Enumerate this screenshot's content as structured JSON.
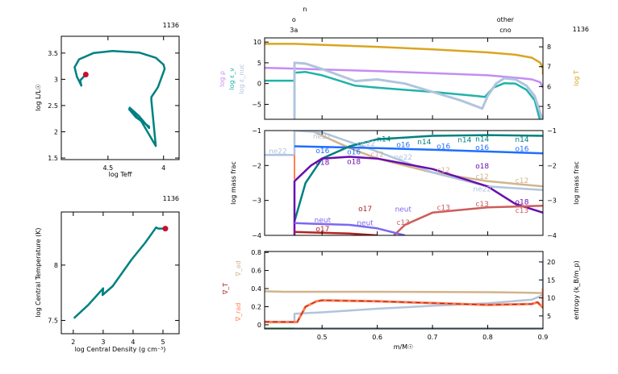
{
  "model_number": "1136",
  "top_annotations": [
    {
      "text": "n",
      "x": 0.469,
      "row": 0
    },
    {
      "text": "o",
      "x": 0.449,
      "row": 1
    },
    {
      "text": "3a",
      "x": 0.449,
      "row": 2
    },
    {
      "text": "other",
      "x": 0.832,
      "row": 1
    },
    {
      "text": "cno",
      "x": 0.832,
      "row": 2
    }
  ],
  "chart_data": [
    {
      "id": "hr",
      "type": "line",
      "title": "1136",
      "xlabel": "log Teff",
      "ylabel": "log L/L☉",
      "xlim": [
        4.92,
        3.86
      ],
      "ylim": [
        1.47,
        3.82
      ],
      "xticks": [
        4.5,
        4
      ],
      "yticks": [
        1.5,
        2,
        2.5,
        3,
        3.5
      ],
      "series": [
        {
          "color": "#008080",
          "width": 2.5,
          "points": [
            [
              4.31,
              2.47
            ],
            [
              4.22,
              2.3
            ],
            [
              4.13,
              2.07
            ],
            [
              4.13,
              2.1
            ],
            [
              4.25,
              2.28
            ],
            [
              4.31,
              2.43
            ],
            [
              4.2,
              2.2
            ],
            [
              4.07,
              1.73
            ],
            [
              4.11,
              2.6
            ],
            [
              4.11,
              2.66
            ],
            [
              4.05,
              2.85
            ],
            [
              3.99,
              3.2
            ],
            [
              4.0,
              3.28
            ],
            [
              4.07,
              3.41
            ],
            [
              4.22,
              3.51
            ],
            [
              4.46,
              3.54
            ],
            [
              4.63,
              3.5
            ],
            [
              4.76,
              3.38
            ],
            [
              4.8,
              3.23
            ],
            [
              4.78,
              3.05
            ],
            [
              4.74,
              2.88
            ],
            [
              4.75,
              2.98
            ],
            [
              4.7,
              3.09
            ]
          ]
        }
      ],
      "marker": {
        "x": 4.7,
        "y": 3.09,
        "color": "#c8102e"
      }
    },
    {
      "id": "rhoT",
      "type": "line",
      "title": "1136",
      "xlabel": "log Central Density (g cm⁻³)",
      "ylabel": "log Central Temperature (K)",
      "xlim": [
        1.6,
        5.54
      ],
      "ylim": [
        7.38,
        8.48
      ],
      "xticks": [
        2,
        3,
        4,
        5
      ],
      "yticks": [
        7.5,
        8
      ],
      "series": [
        {
          "color": "#008080",
          "width": 2.5,
          "points": [
            [
              2.02,
              7.52
            ],
            [
              2.5,
              7.64
            ],
            [
              3.0,
              7.79
            ],
            [
              2.98,
              7.73
            ],
            [
              3.32,
              7.81
            ],
            [
              3.95,
              8.05
            ],
            [
              4.4,
              8.2
            ],
            [
              4.77,
              8.34
            ],
            [
              4.85,
              8.33
            ],
            [
              5.08,
              8.33
            ]
          ]
        }
      ],
      "marker": {
        "x": 5.08,
        "y": 8.33,
        "color": "#c8102e"
      }
    },
    {
      "id": "profile-top",
      "type": "line",
      "title": "1136",
      "xlabel": "",
      "ylabels": [
        {
          "text": "log ρ",
          "color": "#c58cf5"
        },
        {
          "text": "log ε_ν",
          "color": "#20b2aa"
        },
        {
          "text": "log ε_nuc",
          "color": "#b0c4de"
        }
      ],
      "yrlabel": {
        "text": "log T",
        "color": "#daa520"
      },
      "xlim": [
        0.396,
        0.9
      ],
      "ylim": [
        -8.6,
        11
      ],
      "yrlim": [
        4.35,
        8.45
      ],
      "xticks": [
        0.5,
        0.6,
        0.7,
        0.8,
        0.9
      ],
      "yticks": [
        -5,
        0,
        5,
        10
      ],
      "yrticks": [
        5,
        6,
        7,
        8
      ],
      "series": [
        {
          "name": "log T",
          "axis": "right",
          "color": "#daa520",
          "width": 2.5,
          "points": [
            [
              0.396,
              8.15
            ],
            [
              0.45,
              8.15
            ],
            [
              0.5,
              8.1
            ],
            [
              0.6,
              8.0
            ],
            [
              0.7,
              7.87
            ],
            [
              0.8,
              7.72
            ],
            [
              0.85,
              7.6
            ],
            [
              0.88,
              7.45
            ],
            [
              0.895,
              7.2
            ],
            [
              0.9,
              6.9
            ],
            [
              0.9,
              6.6
            ]
          ]
        },
        {
          "name": "log ρ",
          "color": "#c58cf5",
          "width": 2.5,
          "points": [
            [
              0.396,
              3.8
            ],
            [
              0.45,
              3.6
            ],
            [
              0.6,
              3.0
            ],
            [
              0.7,
              2.5
            ],
            [
              0.8,
              2.0
            ],
            [
              0.86,
              1.3
            ],
            [
              0.88,
              1.0
            ],
            [
              0.895,
              0.3
            ],
            [
              0.9,
              -1
            ]
          ]
        },
        {
          "name": "log ε_ν",
          "color": "#20b2aa",
          "width": 2.5,
          "points": [
            [
              0.396,
              0.7
            ],
            [
              0.45,
              0.7
            ],
            [
              0.45,
              2.6
            ],
            [
              0.47,
              2.8
            ],
            [
              0.5,
              2.0
            ],
            [
              0.56,
              -0.5
            ],
            [
              0.6,
              -1
            ],
            [
              0.7,
              -2
            ],
            [
              0.78,
              -3
            ],
            [
              0.795,
              -3.2
            ],
            [
              0.81,
              -1
            ],
            [
              0.83,
              0.1
            ],
            [
              0.85,
              0
            ],
            [
              0.87,
              -1.5
            ],
            [
              0.885,
              -4
            ],
            [
              0.895,
              -9
            ]
          ]
        },
        {
          "name": "log ε_nuc",
          "color": "#b0c4de",
          "width": 3,
          "points": [
            [
              0.45,
              -9
            ],
            [
              0.45,
              5
            ],
            [
              0.47,
              4.8
            ],
            [
              0.5,
              3.5
            ],
            [
              0.56,
              0.6
            ],
            [
              0.6,
              1.0
            ],
            [
              0.65,
              0
            ],
            [
              0.7,
              -2
            ],
            [
              0.75,
              -4
            ],
            [
              0.79,
              -6
            ],
            [
              0.8,
              -3
            ],
            [
              0.815,
              0
            ],
            [
              0.83,
              1.3
            ],
            [
              0.85,
              1
            ],
            [
              0.87,
              -0.5
            ],
            [
              0.885,
              -3
            ],
            [
              0.9,
              -9
            ]
          ]
        }
      ]
    },
    {
      "id": "profile-mid",
      "type": "line",
      "ylabel": "log mass frac",
      "yrlabel": "log mass frac",
      "xlim": [
        0.396,
        0.9
      ],
      "ylim": [
        -4,
        -1
      ],
      "yrlim": [
        -4,
        -1
      ],
      "xticks": [
        0.5,
        0.6,
        0.7,
        0.8,
        0.9
      ],
      "yticks": [
        -4,
        -3,
        -2,
        -1
      ],
      "yrticks": [
        -4,
        -3,
        -2,
        -1
      ],
      "series": [
        {
          "name": "c12",
          "color": "#d2b48c",
          "width": 2.5,
          "points": [
            [
              0.48,
              -1
            ],
            [
              0.55,
              -1.5
            ],
            [
              0.6,
              -1.8
            ],
            [
              0.7,
              -2.2
            ],
            [
              0.8,
              -2.45
            ],
            [
              0.9,
              -2.6
            ]
          ],
          "labels_at": [
            0.6,
            0.72,
            0.79,
            0.862
          ]
        },
        {
          "name": "ne22",
          "color": "#b0c4de",
          "width": 2.5,
          "points": [
            [
              0.396,
              -1.7
            ],
            [
              0.45,
              -1.7
            ],
            [
              0.45,
              -1
            ],
            [
              0.5,
              -1.05
            ],
            [
              0.6,
              -1.6
            ],
            [
              0.7,
              -2.2
            ],
            [
              0.8,
              -2.6
            ],
            [
              0.9,
              -2.7
            ]
          ],
          "labels_at": [
            0.42,
            0.5,
            0.58,
            0.647,
            0.79
          ]
        },
        {
          "name": "o16",
          "color": "#1e6eff",
          "width": 2.5,
          "points": [
            [
              0.45,
              -1.45
            ],
            [
              0.6,
              -1.5
            ],
            [
              0.7,
              -1.55
            ],
            [
              0.8,
              -1.6
            ],
            [
              0.9,
              -1.65
            ]
          ],
          "labels_at": [
            0.501,
            0.578,
            0.647,
            0.72,
            0.79,
            0.862
          ]
        },
        {
          "name": "n14",
          "color": "#008080",
          "width": 2.5,
          "points": [
            [
              0.45,
              -3.6
            ],
            [
              0.47,
              -2.5
            ],
            [
              0.5,
              -1.8
            ],
            [
              0.55,
              -1.45
            ],
            [
              0.6,
              -1.25
            ],
            [
              0.7,
              -1.15
            ],
            [
              0.8,
              -1.13
            ],
            [
              0.9,
              -1.15
            ]
          ],
          "labels_at": [
            0.574,
            0.647,
            0.72,
            0.79,
            0.862
          ]
        },
        {
          "name": "o18",
          "color": "#6a0dad",
          "width": 2.5,
          "points": [
            [
              0.45,
              -4
            ],
            [
              0.45,
              -2.45
            ],
            [
              0.48,
              -2.0
            ],
            [
              0.5,
              -1.8
            ],
            [
              0.55,
              -1.75
            ],
            [
              0.6,
              -1.8
            ],
            [
              0.7,
              -2.1
            ],
            [
              0.8,
              -2.6
            ],
            [
              0.85,
              -3.1
            ],
            [
              0.9,
              -3.35
            ]
          ],
          "labels_at": [
            0.501,
            0.578,
            0.79,
            0.862
          ]
        },
        {
          "name": "c13",
          "color": "#cd5c5c",
          "width": 2.5,
          "points": [
            [
              0.63,
              -4
            ],
            [
              0.65,
              -3.7
            ],
            [
              0.7,
              -3.35
            ],
            [
              0.8,
              -3.2
            ],
            [
              0.9,
              -3.15
            ]
          ],
          "labels_at": [
            0.647,
            0.72,
            0.79,
            0.862
          ]
        },
        {
          "name": "neut",
          "color": "#7b68ee",
          "width": 2.5,
          "points": [
            [
              0.45,
              -3.65
            ],
            [
              0.55,
              -3.7
            ],
            [
              0.6,
              -3.8
            ],
            [
              0.65,
              -4.0
            ]
          ],
          "labels_at": [
            0.501,
            0.578,
            0.647
          ]
        },
        {
          "name": "o17",
          "color": "#b22222",
          "width": 2.5,
          "points": [
            [
              0.45,
              -3.9
            ],
            [
              0.55,
              -3.95
            ],
            [
              0.6,
              -4.0
            ]
          ],
          "labels_at": [
            0.501,
            0.578
          ]
        },
        {
          "color": "#ff7f50",
          "width": 2,
          "points": [
            [
              0.45,
              -1.7
            ],
            [
              0.45,
              -2.4
            ]
          ]
        }
      ]
    },
    {
      "id": "profile-bottom",
      "type": "line",
      "xlabel": "m/M☉",
      "ylabels": [
        {
          "text": "∇_ad",
          "color": "#d2b48c"
        },
        {
          "text": "∇_T",
          "color": "#b22222"
        },
        {
          "text": "∇_rad",
          "color": "#ff7f50"
        }
      ],
      "yrlabel": {
        "text": "entropy (k_B/m_p)",
        "color": "#000000"
      },
      "xlim": [
        0.396,
        0.9
      ],
      "ylim": [
        -0.045,
        0.81
      ],
      "yrlim": [
        1.4,
        22.9
      ],
      "xticks": [
        0.5,
        0.6,
        0.7,
        0.8,
        0.9
      ],
      "xticklabels": [
        "0.5",
        "0.6",
        "0.7",
        "0.8",
        "0.9"
      ],
      "yticks": [
        0,
        0.2,
        0.4,
        0.6,
        0.8
      ],
      "yrticks": [
        5,
        10,
        15,
        20
      ],
      "series": [
        {
          "name": "∇_ad",
          "color": "#d2b48c",
          "width": 2.5,
          "points": [
            [
              0.396,
              0.37
            ],
            [
              0.43,
              0.365
            ],
            [
              0.6,
              0.365
            ],
            [
              0.8,
              0.36
            ],
            [
              0.87,
              0.355
            ],
            [
              0.9,
              0.35
            ]
          ]
        },
        {
          "name": "entropy",
          "axis": "right",
          "color": "#b0c4de",
          "width": 2.5,
          "points": [
            [
              0.396,
              3.4
            ],
            [
              0.45,
              3.4
            ],
            [
              0.45,
              5.6
            ],
            [
              0.5,
              6
            ],
            [
              0.6,
              7
            ],
            [
              0.7,
              7.8
            ],
            [
              0.8,
              8.5
            ],
            [
              0.88,
              9.5
            ],
            [
              0.895,
              10.5
            ],
            [
              0.9,
              11
            ],
            [
              0.9,
              20
            ]
          ]
        },
        {
          "name": "∇_rad",
          "color": "#ff7f50",
          "width": 3,
          "points": [
            [
              0.396,
              0.03
            ],
            [
              0.455,
              0.03
            ],
            [
              0.47,
              0.2
            ],
            [
              0.49,
              0.26
            ],
            [
              0.5,
              0.27
            ],
            [
              0.6,
              0.26
            ],
            [
              0.7,
              0.24
            ],
            [
              0.8,
              0.22
            ],
            [
              0.88,
              0.23
            ],
            [
              0.89,
              0.25
            ],
            [
              0.898,
              0.2
            ],
            [
              0.9,
              0.19
            ],
            [
              0.9,
              0.4
            ]
          ]
        },
        {
          "name": "∇_T",
          "color": "#b22222",
          "width": 1.2,
          "dash": "6 4",
          "points": [
            [
              0.396,
              0.035
            ],
            [
              0.455,
              0.03
            ],
            [
              0.47,
              0.2
            ],
            [
              0.49,
              0.26
            ],
            [
              0.5,
              0.27
            ],
            [
              0.6,
              0.26
            ],
            [
              0.7,
              0.24
            ],
            [
              0.8,
              0.22
            ],
            [
              0.88,
              0.23
            ],
            [
              0.89,
              0.25
            ],
            [
              0.898,
              0.2
            ],
            [
              0.9,
              0.19
            ]
          ]
        },
        {
          "color": "#2e8b57",
          "width": 2,
          "points": [
            [
              0.396,
              -0.04
            ],
            [
              0.45,
              -0.04
            ]
          ]
        },
        {
          "color": "#708090",
          "width": 2,
          "points": [
            [
              0.45,
              -0.04
            ],
            [
              0.9,
              -0.04
            ]
          ]
        }
      ]
    }
  ]
}
